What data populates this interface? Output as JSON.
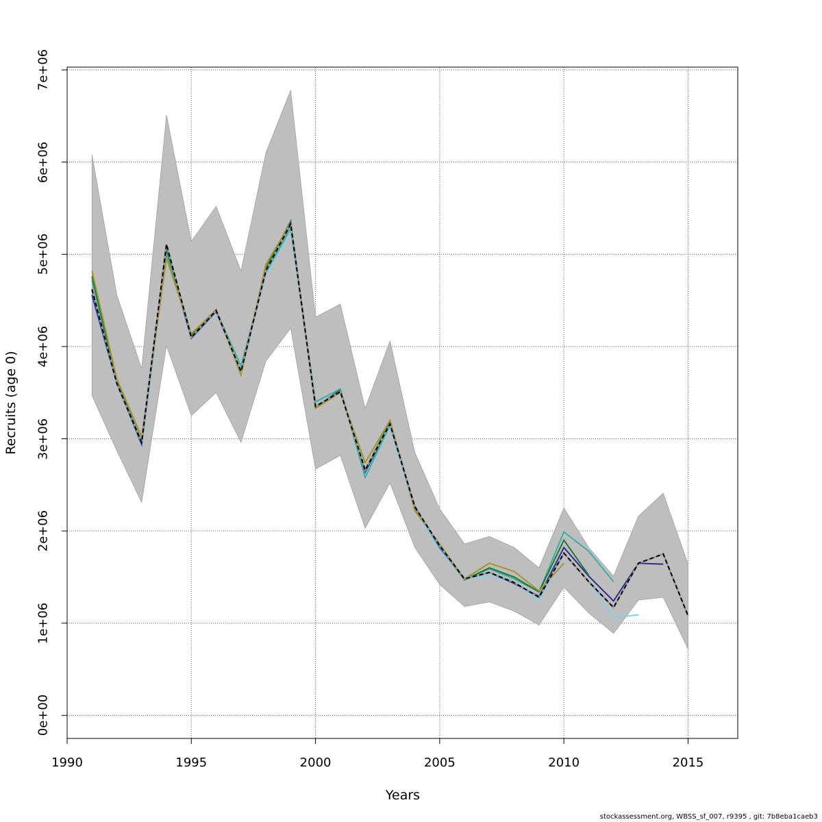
{
  "chart_data": {
    "type": "line",
    "title": "",
    "xlabel": "Years",
    "ylabel": "Recruits (age 0)",
    "xlim": [
      1990,
      2017
    ],
    "ylim": [
      -250000,
      7030000
    ],
    "x_ticks": [
      1990,
      1995,
      2000,
      2005,
      2010,
      2015
    ],
    "x_tick_labels": [
      "1990",
      "1995",
      "2000",
      "2005",
      "2010",
      "2015"
    ],
    "y_ticks": [
      0,
      1000000,
      2000000,
      3000000,
      4000000,
      5000000,
      6000000,
      7000000
    ],
    "y_tick_labels": [
      "0e+00",
      "1e+06",
      "2e+06",
      "3e+06",
      "4e+06",
      "5e+06",
      "6e+06",
      "7e+06"
    ],
    "grid": true,
    "band": {
      "color": "#bebebe",
      "x": [
        1991,
        1992,
        1993,
        1994,
        1995,
        1996,
        1997,
        1998,
        1999,
        2000,
        2001,
        2002,
        2003,
        2004,
        2005,
        2006,
        2007,
        2008,
        2009,
        2010,
        2011,
        2012,
        2013,
        2014,
        2015
      ],
      "upper": [
        6080000,
        4560000,
        3760000,
        6510000,
        5140000,
        5520000,
        4820000,
        6100000,
        6780000,
        4320000,
        4460000,
        3330000,
        4060000,
        2850000,
        2240000,
        1860000,
        1940000,
        1820000,
        1600000,
        2250000,
        1820000,
        1510000,
        2160000,
        2410000,
        1640000
      ],
      "lower": [
        3470000,
        2870000,
        2310000,
        4010000,
        3250000,
        3500000,
        2960000,
        3840000,
        4200000,
        2670000,
        2820000,
        2030000,
        2520000,
        1820000,
        1420000,
        1180000,
        1230000,
        1130000,
        980000,
        1390000,
        1110000,
        890000,
        1250000,
        1280000,
        720000
      ]
    },
    "series": [
      {
        "color": "#87ceeb",
        "x": [
          1991,
          1992,
          1993,
          1994,
          1995,
          1996,
          1997,
          1998,
          1999,
          2000,
          2001,
          2002,
          2003,
          2004,
          2005,
          2006,
          2007,
          2008,
          2009,
          2010,
          2011,
          2012,
          2013
        ],
        "values": [
          4530000,
          3590000,
          2920000,
          5000000,
          4090000,
          4370000,
          3760000,
          4780000,
          5260000,
          3390000,
          3540000,
          2610000,
          3120000,
          2230000,
          1800000,
          1480000,
          1520000,
          1430000,
          1250000,
          1750000,
          1450000,
          1060000,
          1090000
        ]
      },
      {
        "color": "#2f2c8e",
        "x": [
          1991,
          1992,
          1993,
          1994,
          1995,
          1996,
          1997,
          1998,
          1999,
          2000,
          2001,
          2002,
          2003,
          2004,
          2005,
          2006,
          2007,
          2008,
          2009,
          2010,
          2011,
          2012,
          2013,
          2014
        ],
        "values": [
          4560000,
          3600000,
          2940000,
          5040000,
          4090000,
          4380000,
          3720000,
          4820000,
          5320000,
          3340000,
          3530000,
          2640000,
          3150000,
          2270000,
          1820000,
          1480000,
          1550000,
          1430000,
          1290000,
          1820000,
          1510000,
          1240000,
          1650000,
          1640000
        ]
      },
      {
        "color": "#3cb0a0",
        "x": [
          1991,
          1992,
          1993,
          1994,
          1995,
          1996,
          1997,
          1998,
          1999,
          2000,
          2001,
          2002,
          2003,
          2004,
          2005,
          2006,
          2007,
          2008,
          2009,
          2010,
          2011,
          2012
        ],
        "values": [
          4720000,
          3610000,
          2960000,
          5010000,
          4120000,
          4390000,
          3790000,
          4800000,
          5280000,
          3400000,
          3540000,
          2580000,
          3150000,
          2250000,
          1830000,
          1470000,
          1590000,
          1480000,
          1340000,
          1990000,
          1780000,
          1450000
        ]
      },
      {
        "color": "#1b7a36",
        "x": [
          1991,
          1992,
          1993,
          1994,
          1995,
          1996,
          1997,
          1998,
          1999,
          2000,
          2001,
          2002,
          2003,
          2004,
          2005,
          2006,
          2007,
          2008,
          2009,
          2010,
          2011
        ],
        "values": [
          4760000,
          3620000,
          2970000,
          5060000,
          4130000,
          4400000,
          3700000,
          4850000,
          5360000,
          3340000,
          3520000,
          2660000,
          3190000,
          2250000,
          1840000,
          1470000,
          1600000,
          1500000,
          1340000,
          1900000,
          1520000
        ]
      },
      {
        "color": "#a4952a",
        "x": [
          1991,
          1992,
          1993,
          1994,
          1995,
          1996,
          1997,
          1998,
          1999,
          2000,
          2001,
          2002,
          2003,
          2004,
          2005,
          2006,
          2007,
          2008,
          2009,
          2010
        ],
        "values": [
          4820000,
          3650000,
          3020000,
          4960000,
          4140000,
          4400000,
          3690000,
          4890000,
          5340000,
          3330000,
          3500000,
          2740000,
          3200000,
          2220000,
          1860000,
          1480000,
          1650000,
          1560000,
          1350000,
          1650000
        ]
      },
      {
        "color": "#000000",
        "dashed": true,
        "x": [
          1991,
          1992,
          1993,
          1994,
          1995,
          1996,
          1997,
          1998,
          1999,
          2000,
          2001,
          2002,
          2003,
          2004,
          2005,
          2006,
          2007,
          2008,
          2009,
          2010,
          2011,
          2012,
          2013,
          2014,
          2015
        ],
        "values": [
          4620000,
          3600000,
          2960000,
          5110000,
          4100000,
          4390000,
          3730000,
          4820000,
          5330000,
          3350000,
          3510000,
          2660000,
          3160000,
          2260000,
          1840000,
          1480000,
          1550000,
          1440000,
          1280000,
          1760000,
          1450000,
          1170000,
          1650000,
          1750000,
          1080000
        ]
      }
    ]
  },
  "footer": "stockassessment.org, WBSS_sf_007, r9395 , git: 7b8eba1caeb3"
}
